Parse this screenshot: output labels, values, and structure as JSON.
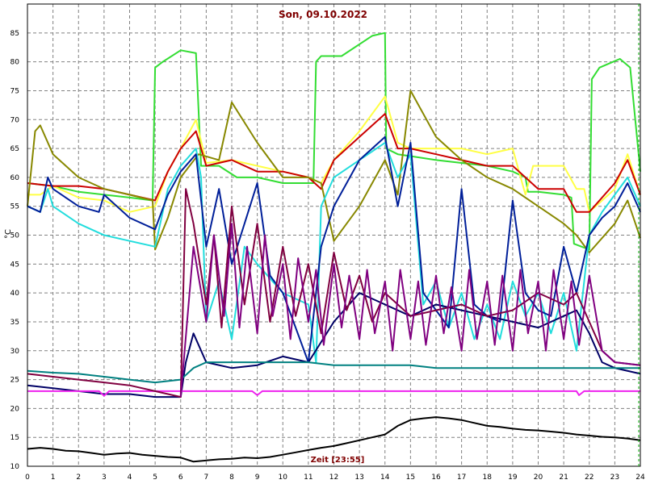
{
  "chart_data": {
    "type": "line",
    "title": "Son, 09.10.2022",
    "xlabel": "Zeit [23:55]",
    "ylabel": "°C",
    "xlim": [
      0,
      24
    ],
    "ylim": [
      10,
      90
    ],
    "x_ticks": [
      "0",
      "1",
      "2",
      "3",
      "4",
      "5",
      "6",
      "7",
      "8",
      "9",
      "10",
      "11",
      "12",
      "13",
      "14",
      "15",
      "16",
      "17",
      "18",
      "19",
      "20",
      "21",
      "22",
      "23",
      "24"
    ],
    "y_ticks": [
      "10",
      "15",
      "20",
      "25",
      "30",
      "35",
      "40",
      "45",
      "50",
      "55",
      "60",
      "65",
      "70",
      "75",
      "80",
      "85"
    ],
    "grid": true,
    "series": [
      {
        "color": "#33dd33",
        "x": [
          0,
          1,
          2,
          3,
          4,
          4.9,
          5.0,
          5.3,
          6.0,
          6.6,
          6.8,
          7.5,
          8.2,
          9.0,
          10,
          11.2,
          11.3,
          11.5,
          12.3,
          13.5,
          14.0,
          14.05,
          14.5,
          16,
          17,
          18,
          19,
          19.5,
          19.6,
          20,
          21,
          21.3,
          21.4,
          22.0,
          22.1,
          22.4,
          23.2,
          23.6,
          24
        ],
        "y": [
          59,
          58.5,
          57.5,
          57,
          56.5,
          56,
          79,
          80,
          82,
          81.5,
          62,
          62,
          60,
          60,
          59,
          59,
          80,
          81,
          81,
          84.5,
          85,
          65,
          64,
          63,
          62.5,
          62,
          61,
          60,
          57.5,
          57.5,
          57,
          56.5,
          48.5,
          47.5,
          77,
          79,
          80.5,
          79,
          61
        ]
      },
      {
        "color": "#ffff44",
        "x": [
          0,
          0.5,
          1,
          2,
          3,
          4,
          5,
          5.5,
          6,
          6.6,
          7,
          8,
          9,
          10,
          11,
          11.5,
          12,
          13,
          14,
          14.5,
          15,
          16,
          17,
          18,
          19,
          19.5,
          19.8,
          20.5,
          21,
          21.5,
          21.8,
          22,
          23,
          23.5,
          24
        ],
        "y": [
          57,
          57,
          58.5,
          56.5,
          56,
          54,
          55,
          61,
          65,
          70,
          62.5,
          63,
          62,
          61,
          60,
          59,
          63,
          68,
          74,
          66,
          65,
          65,
          65,
          64,
          65,
          57,
          62,
          62,
          62,
          58,
          58,
          54,
          58,
          64,
          57
        ]
      },
      {
        "color": "#cc0000",
        "x": [
          0,
          1,
          2,
          3,
          4,
          5,
          5.5,
          6,
          6.6,
          7,
          8,
          9,
          10,
          11,
          11.5,
          12,
          13,
          14,
          14.5,
          15,
          16,
          17,
          18,
          19,
          20,
          20.5,
          21,
          21.5,
          22,
          23,
          23.5,
          24
        ],
        "y": [
          59,
          58.5,
          58.5,
          58,
          57,
          56,
          61,
          65,
          68,
          62,
          63,
          61,
          61,
          60,
          58,
          63,
          67,
          71,
          65,
          65,
          64,
          63,
          62,
          62,
          58,
          58,
          58,
          54,
          54,
          59,
          63,
          57
        ]
      },
      {
        "color": "#888800",
        "x": [
          0,
          0.3,
          0.5,
          1,
          2,
          3,
          4,
          4.9,
          5.0,
          5.5,
          6,
          6.7,
          7.5,
          8,
          9,
          10,
          11,
          11.5,
          12,
          13,
          14,
          14.5,
          15,
          16,
          17,
          18,
          19,
          20,
          21,
          21.5,
          22,
          23,
          23.5,
          24
        ],
        "y": [
          55,
          68,
          69,
          64,
          60,
          58,
          57,
          56,
          47.5,
          53,
          60,
          64,
          63,
          73,
          66,
          60,
          60,
          59,
          49,
          55,
          63,
          57,
          75,
          67,
          63,
          60,
          58,
          55,
          52,
          50,
          47,
          52,
          56,
          49.5
        ]
      },
      {
        "color": "#22dddd",
        "x": [
          0,
          0.5,
          0.8,
          1,
          2,
          3,
          4,
          5,
          5.5,
          6,
          6.6,
          6.8,
          7,
          7.5,
          8,
          8.5,
          9,
          10,
          11,
          11.3,
          11.5,
          12,
          13,
          14,
          14.5,
          15,
          15.5,
          16,
          16.5,
          17,
          17.5,
          18,
          18.5,
          19,
          19.5,
          20,
          20.5,
          21,
          21.5,
          22,
          22.5,
          23,
          23.5,
          24
        ],
        "y": [
          55,
          54,
          58,
          55,
          52,
          50,
          49,
          48,
          58,
          62,
          65,
          60,
          35,
          42,
          32,
          48,
          45,
          40,
          38,
          28,
          55,
          60,
          63,
          66,
          60,
          64,
          38,
          42,
          34,
          40,
          32,
          38,
          32,
          42,
          36,
          40,
          33,
          40,
          30,
          50,
          54,
          57,
          60,
          55
        ]
      },
      {
        "color": "#001f99",
        "x": [
          0,
          0.5,
          0.8,
          1,
          2,
          2.8,
          3,
          4,
          5,
          5.5,
          6,
          6.6,
          7,
          7.5,
          8,
          8.5,
          9,
          9.5,
          10,
          11,
          11.5,
          12,
          13,
          14,
          14.5,
          15,
          15.5,
          16,
          16.5,
          17,
          17.5,
          18,
          18.5,
          19,
          19.5,
          20,
          20.5,
          21,
          21.5,
          22,
          22.5,
          23,
          23.5,
          24
        ],
        "y": [
          55,
          54,
          60,
          58,
          55,
          54,
          57,
          53,
          51,
          57,
          61,
          64,
          48,
          58,
          45,
          52,
          59,
          43,
          40,
          28,
          48,
          55,
          63,
          67,
          55,
          66,
          40,
          37,
          34,
          58,
          38,
          36,
          35,
          56,
          40,
          37,
          36,
          48,
          40,
          50,
          53,
          55,
          59,
          54
        ]
      },
      {
        "color": "#000066",
        "x": [
          0,
          1,
          2,
          3,
          4,
          5,
          6,
          6.2,
          6.5,
          7,
          8,
          9,
          10,
          11,
          12,
          13,
          14,
          15,
          16,
          17,
          18,
          19,
          20,
          21,
          21.5,
          22,
          22.5,
          23,
          24
        ],
        "y": [
          24,
          23.5,
          23,
          22.5,
          22.5,
          22,
          22,
          28,
          33,
          28,
          27,
          27.5,
          29,
          28,
          35,
          40,
          38,
          36,
          38,
          37,
          36,
          35,
          34,
          36,
          37,
          33,
          28,
          27,
          26
        ]
      },
      {
        "color": "#008080",
        "x": [
          0,
          1,
          2,
          3,
          4,
          5,
          6,
          6.5,
          7,
          8,
          9,
          10,
          11,
          12,
          13,
          14,
          15,
          16,
          17,
          18,
          19,
          20,
          21,
          22,
          23,
          24
        ],
        "y": [
          26.5,
          26.2,
          26,
          25.5,
          25,
          24.5,
          25,
          27,
          28,
          28,
          28,
          28,
          28,
          27.5,
          27.5,
          27.5,
          27.5,
          27,
          27,
          27,
          27,
          27,
          27,
          27,
          27,
          27
        ]
      },
      {
        "color": "#ee22ee",
        "x": [
          0,
          1,
          2,
          2.8,
          3,
          3.2,
          4,
          5,
          6,
          7,
          8,
          8.8,
          9,
          9.2,
          10,
          11,
          12,
          13,
          14,
          15,
          16,
          17,
          18,
          19,
          20,
          21,
          21.5,
          21.6,
          21.8,
          22,
          23,
          24
        ],
        "y": [
          23,
          23,
          23,
          23,
          22.2,
          23,
          23,
          23,
          23,
          23,
          23,
          23,
          22.3,
          23,
          23,
          23,
          23,
          23,
          23,
          23,
          23,
          23,
          23,
          23,
          23,
          23,
          23,
          22.3,
          23,
          23,
          23,
          23
        ]
      },
      {
        "color": "#800040",
        "x": [
          0,
          1,
          2,
          3,
          4,
          5,
          6,
          6.2,
          6.5,
          7,
          7.3,
          7.6,
          8,
          8.5,
          9,
          9.5,
          10,
          10.5,
          11,
          11.5,
          12,
          12.5,
          13,
          13.5,
          14,
          15,
          16,
          17,
          18,
          19,
          20,
          21,
          21.5,
          22,
          22.5,
          23,
          24
        ],
        "y": [
          26,
          25.5,
          25,
          24.5,
          24,
          23,
          22,
          58,
          52,
          38,
          50,
          34,
          55,
          38,
          52,
          35,
          48,
          36,
          45,
          33,
          47,
          37,
          43,
          35,
          40,
          36,
          37,
          38,
          36,
          37,
          40,
          38,
          40,
          35,
          30,
          28,
          27.5
        ]
      },
      {
        "color": "#800080",
        "x": [
          6,
          6.5,
          7,
          7.3,
          7.7,
          8,
          8.3,
          8.6,
          9,
          9.3,
          9.6,
          10,
          10.3,
          10.6,
          11,
          11.3,
          11.6,
          12,
          12.3,
          12.6,
          13,
          13.3,
          13.6,
          14,
          14.3,
          14.6,
          15,
          15.3,
          15.6,
          16,
          16.3,
          16.6,
          17,
          17.3,
          17.6,
          18,
          18.3,
          18.6,
          19,
          19.3,
          19.6,
          20,
          20.3,
          20.6,
          21,
          21.3,
          21.6,
          22,
          22.5,
          23,
          24
        ],
        "y": [
          22,
          48,
          35,
          50,
          36,
          52,
          34,
          48,
          33,
          50,
          36,
          45,
          32,
          46,
          35,
          44,
          31,
          45,
          34,
          43,
          32,
          44,
          33,
          42,
          30,
          44,
          32,
          42,
          31,
          43,
          33,
          41,
          30,
          44,
          32,
          42,
          31,
          43,
          30,
          44,
          33,
          42,
          30,
          44,
          32,
          42,
          31,
          43,
          30,
          28,
          27.5
        ]
      },
      {
        "color": "#000000",
        "x": [
          0,
          0.5,
          1,
          1.5,
          2,
          2.5,
          3,
          3.5,
          4,
          4.5,
          5,
          5.5,
          6,
          6.5,
          7,
          7.5,
          8,
          8.5,
          9,
          9.5,
          10,
          10.5,
          11,
          11.5,
          12,
          12.5,
          13,
          13.5,
          14,
          14.5,
          15,
          15.5,
          16,
          16.5,
          17,
          17.5,
          18,
          18.5,
          19,
          19.5,
          20,
          20.5,
          21,
          21.5,
          22,
          22.5,
          23,
          23.5,
          24
        ],
        "y": [
          13,
          13.2,
          13,
          12.7,
          12.6,
          12.3,
          12,
          12.2,
          12.3,
          12,
          11.8,
          11.6,
          11.5,
          10.8,
          11,
          11.2,
          11.3,
          11.5,
          11.4,
          11.6,
          12,
          12.4,
          12.8,
          13.2,
          13.5,
          14,
          14.5,
          15,
          15.5,
          17,
          18,
          18.3,
          18.5,
          18.3,
          18,
          17.5,
          17,
          16.8,
          16.5,
          16.3,
          16.2,
          16,
          15.8,
          15.5,
          15.3,
          15.1,
          15,
          14.8,
          14.5
        ]
      }
    ]
  }
}
